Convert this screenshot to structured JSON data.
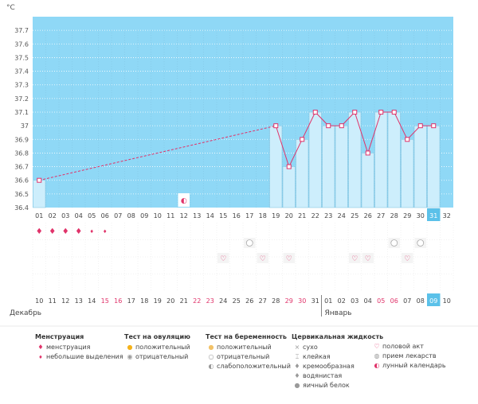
{
  "chart_data": {
    "type": "line",
    "ylabel": "°C",
    "yticks": [
      "37.7",
      "37.6",
      "37.5",
      "37.4",
      "37.3",
      "37.2",
      "37.1",
      "37",
      "36.9",
      "36.8",
      "36.7",
      "36.6",
      "36.5",
      "36.4"
    ],
    "ylim": [
      36.4,
      37.8
    ],
    "cycle_days": [
      "01",
      "02",
      "03",
      "04",
      "05",
      "06",
      "07",
      "08",
      "09",
      "10",
      "11",
      "12",
      "13",
      "14",
      "15",
      "16",
      "17",
      "18",
      "19",
      "20",
      "21",
      "22",
      "23",
      "24",
      "25",
      "26",
      "27",
      "28",
      "29",
      "30",
      "31",
      "32"
    ],
    "calendar_dates": [
      {
        "d": "10",
        "w": false
      },
      {
        "d": "11",
        "w": false
      },
      {
        "d": "12",
        "w": false
      },
      {
        "d": "13",
        "w": false
      },
      {
        "d": "14",
        "w": false
      },
      {
        "d": "15",
        "w": true
      },
      {
        "d": "16",
        "w": true
      },
      {
        "d": "17",
        "w": false
      },
      {
        "d": "18",
        "w": false
      },
      {
        "d": "19",
        "w": false
      },
      {
        "d": "20",
        "w": false
      },
      {
        "d": "21",
        "w": false
      },
      {
        "d": "22",
        "w": true
      },
      {
        "d": "23",
        "w": true
      },
      {
        "d": "24",
        "w": false
      },
      {
        "d": "25",
        "w": false
      },
      {
        "d": "26",
        "w": false
      },
      {
        "d": "27",
        "w": false
      },
      {
        "d": "28",
        "w": false
      },
      {
        "d": "29",
        "w": true
      },
      {
        "d": "30",
        "w": true
      },
      {
        "d": "31",
        "w": false
      },
      {
        "d": "01",
        "w": false
      },
      {
        "d": "02",
        "w": false
      },
      {
        "d": "03",
        "w": false
      },
      {
        "d": "04",
        "w": false
      },
      {
        "d": "05",
        "w": true
      },
      {
        "d": "06",
        "w": true
      },
      {
        "d": "07",
        "w": false
      },
      {
        "d": "08",
        "w": false
      },
      {
        "d": "09",
        "w": false
      },
      {
        "d": "10",
        "w": false
      }
    ],
    "month_labels": [
      "Декабрь",
      "Январь"
    ],
    "today_index": 30,
    "series": [
      {
        "values": [
          36.6,
          null,
          null,
          null,
          null,
          null,
          null,
          null,
          null,
          null,
          null,
          null,
          null,
          null,
          null,
          null,
          null,
          null,
          37.0,
          36.7,
          36.9,
          37.1,
          37.0,
          37.0,
          37.1,
          36.8,
          37.1,
          37.1,
          36.9,
          37.0,
          37.0,
          null
        ]
      }
    ],
    "menstruation": [
      {
        "day": 1,
        "type": "heavy"
      },
      {
        "day": 2,
        "type": "heavy"
      },
      {
        "day": 3,
        "type": "heavy"
      },
      {
        "day": 4,
        "type": "heavy"
      },
      {
        "day": 5,
        "type": "light"
      },
      {
        "day": 6,
        "type": "light"
      }
    ],
    "moon_day": 12,
    "pregnancy_tests": [
      {
        "day": 17,
        "result": "negative"
      },
      {
        "day": 28,
        "result": "negative"
      },
      {
        "day": 30,
        "result": "negative"
      }
    ],
    "intercourse_days": [
      15,
      18,
      20,
      25,
      26,
      29
    ]
  },
  "colors": {
    "plot_bg": "#8fd8f6",
    "bar_fill": "#cdeefc",
    "bar_stroke": "#86c6e3",
    "line": "#e0336a",
    "weekend_text": "#e0336a",
    "today_bg": "#5bc1e9"
  },
  "legend": {
    "menstruation": {
      "title": "Менструация",
      "items": [
        {
          "icon": "blood-drop-icon",
          "label": "менструация"
        },
        {
          "icon": "small-drop-icon",
          "label": "небольшие выделения"
        }
      ]
    },
    "ovulation": {
      "title": "Тест на овуляцию",
      "items": [
        {
          "icon": "sun-positive-icon",
          "label": "положительный"
        },
        {
          "icon": "sun-negative-icon",
          "label": "отрицательный"
        }
      ]
    },
    "pregnancy": {
      "title": "Тест на беременность",
      "items": [
        {
          "icon": "ball-positive-icon",
          "label": "положительный"
        },
        {
          "icon": "ball-negative-icon",
          "label": "отрицательный"
        },
        {
          "icon": "ball-weak-icon",
          "label": "слабоположительный"
        }
      ]
    },
    "cervical": {
      "title": "Цервикальная жидкость",
      "items": [
        {
          "icon": "dry-icon",
          "label": "сухо"
        },
        {
          "icon": "sticky-icon",
          "label": "клейкая"
        },
        {
          "icon": "creamy-icon",
          "label": "кремообразная"
        },
        {
          "icon": "watery-icon",
          "label": "водянистая"
        },
        {
          "icon": "egg-white-icon",
          "label": "яичный белок"
        }
      ]
    },
    "other": {
      "items": [
        {
          "icon": "heart-icon",
          "label": "половой акт"
        },
        {
          "icon": "pill-icon",
          "label": "прием лекарств"
        },
        {
          "icon": "moon-icon",
          "label": "лунный календарь"
        }
      ]
    }
  }
}
